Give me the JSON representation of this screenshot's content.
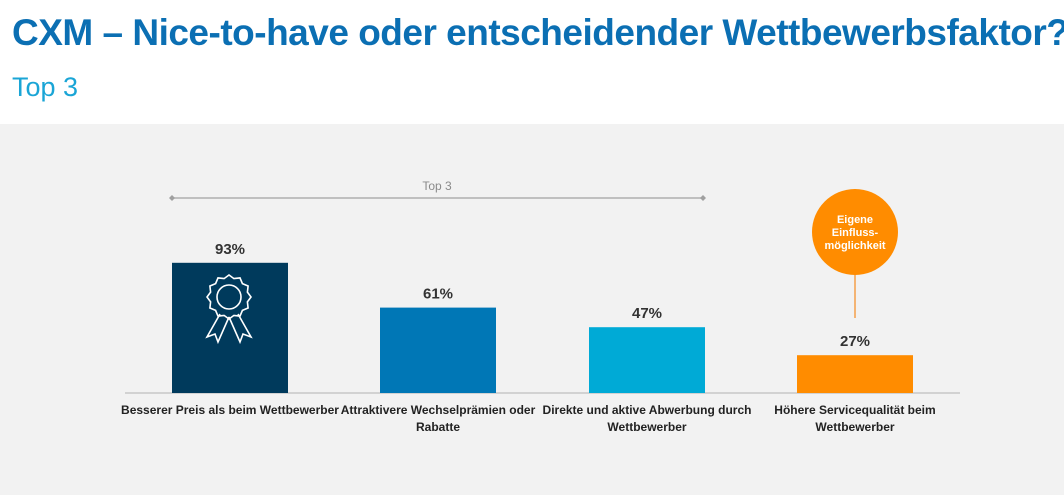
{
  "header": {
    "title": "CXM – Nice-to-have oder entscheidender Wettbewerbsfaktor?",
    "subtitle": "Top 3"
  },
  "chart_data": {
    "type": "bar",
    "categories": [
      "Besserer Preis als beim Wettbewerber",
      "Attraktivere Wechselprämien oder Rabatte",
      "Direkte und aktive Abwerbung durch Wettbewerber",
      "Höhere Servicequalität beim Wettbewerber"
    ],
    "category_lines": [
      [
        "Besserer Preis als beim Wettbewerber"
      ],
      [
        "Attraktivere Wechselprämien oder",
        "Rabatte"
      ],
      [
        "Direkte und aktive Abwerbung durch",
        "Wettbewerber"
      ],
      [
        "Höhere Servicequalität beim",
        "Wettbewerber"
      ]
    ],
    "values": [
      93,
      61,
      47,
      27
    ],
    "data_labels": [
      "93%",
      "61%",
      "47%",
      "27%"
    ],
    "colors": [
      "#003a5c",
      "#0077b6",
      "#00aad6",
      "#ff8c00"
    ],
    "unit": "%",
    "ylim": [
      0,
      100
    ],
    "grid": false,
    "bracket_label": "Top 3",
    "callout": {
      "text_lines": [
        "Eigene",
        "Einfluss-",
        "möglichkeit"
      ],
      "color": "#ff8c00",
      "target_category_index": 3
    },
    "icons": [
      {
        "category_index": 0,
        "name": "award-ribbon-icon"
      }
    ]
  }
}
